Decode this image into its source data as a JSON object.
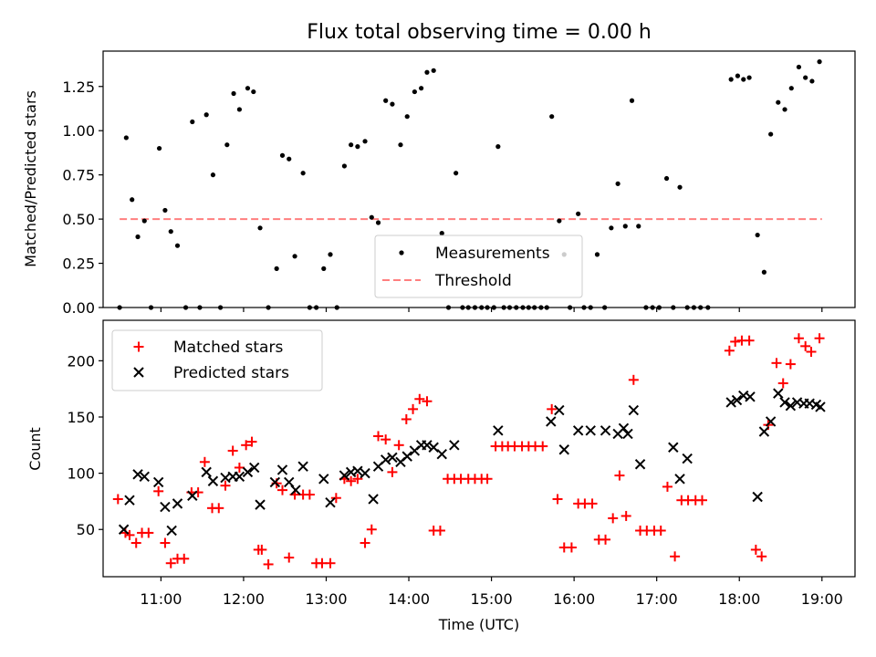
{
  "colors": {
    "measurements": "#000000",
    "threshold": "#ff7f7f",
    "matched": "#ff0000",
    "predicted": "#000000"
  },
  "chart_data": [
    {
      "type": "scatter",
      "title": "Flux total observing time = 0.00 h",
      "xlabel": "",
      "ylabel": "Matched/Predicted stars",
      "xlim": [
        10.3,
        19.4
      ],
      "ylim": [
        0,
        1.45
      ],
      "ytick_labels": [
        "0.00",
        "0.25",
        "0.50",
        "0.75",
        "1.00",
        "1.25"
      ],
      "ytick_values": [
        0,
        0.25,
        0.5,
        0.75,
        1.0,
        1.25
      ],
      "legend_position": "lower-center",
      "grid": false,
      "series": [
        {
          "name": "Measurements",
          "marker": "dot",
          "x": [
            10.5,
            10.58,
            10.65,
            10.72,
            10.8,
            10.88,
            10.98,
            11.05,
            11.12,
            11.2,
            11.3,
            11.38,
            11.47,
            11.55,
            11.63,
            11.72,
            11.8,
            11.88,
            11.95,
            12.05,
            12.12,
            12.2,
            12.3,
            12.4,
            12.47,
            12.55,
            12.62,
            12.72,
            12.8,
            12.88,
            12.97,
            13.05,
            13.13,
            13.22,
            13.3,
            13.38,
            13.47,
            13.55,
            13.63,
            13.72,
            13.8,
            13.9,
            13.98,
            14.07,
            14.15,
            14.22,
            14.3,
            14.4,
            14.48,
            14.57,
            14.65,
            14.72,
            14.8,
            14.88,
            14.95,
            15.03,
            15.08,
            15.15,
            15.22,
            15.3,
            15.38,
            15.45,
            15.52,
            15.6,
            15.67,
            15.73,
            15.82,
            15.88,
            15.95,
            16.05,
            16.12,
            16.2,
            16.28,
            16.37,
            16.45,
            16.53,
            16.62,
            16.7,
            16.78,
            16.87,
            16.95,
            17.03,
            17.12,
            17.2,
            17.28,
            17.37,
            17.45,
            17.53,
            17.62,
            17.9,
            17.98,
            18.05,
            18.12,
            18.22,
            18.3,
            18.38,
            18.47,
            18.55,
            18.63,
            18.72,
            18.8,
            18.88,
            18.97
          ],
          "y": [
            0,
            0.96,
            0.61,
            0.4,
            0.49,
            0,
            0.9,
            0.55,
            0.43,
            0.35,
            0,
            1.05,
            0,
            1.09,
            0.75,
            0,
            0.92,
            1.21,
            1.12,
            1.24,
            1.22,
            0.45,
            0,
            0.22,
            0.86,
            0.84,
            0.29,
            0.76,
            0,
            0,
            0.22,
            0.3,
            0,
            0.8,
            0.92,
            0.91,
            0.94,
            0.51,
            0.48,
            1.17,
            1.15,
            0.92,
            1.08,
            1.22,
            1.24,
            1.33,
            1.34,
            0.42,
            0,
            0.76,
            0,
            0,
            0,
            0,
            0,
            0,
            0.91,
            0,
            0,
            0,
            0,
            0,
            0,
            0,
            0,
            1.08,
            0.49,
            0.3,
            0,
            0.53,
            0,
            0,
            0.3,
            0,
            0.45,
            0.7,
            0.46,
            1.17,
            0.46,
            0,
            0,
            0,
            0.73,
            0,
            0.68,
            0,
            0,
            0,
            0,
            1.29,
            1.31,
            1.29,
            1.3,
            0.41,
            0.2,
            0.98,
            1.16,
            1.12,
            1.24,
            1.36,
            1.3,
            1.28,
            1.39
          ]
        },
        {
          "name": "Threshold",
          "marker": "dashed-line",
          "x": [
            10.5,
            19.0
          ],
          "y": [
            0.5,
            0.5
          ]
        }
      ]
    },
    {
      "type": "scatter",
      "title": "",
      "xlabel": "Time (UTC)",
      "ylabel": "Count",
      "xlim": [
        10.3,
        19.4
      ],
      "ylim": [
        8,
        236
      ],
      "xtick_labels": [
        "11:00",
        "12:00",
        "13:00",
        "14:00",
        "15:00",
        "16:00",
        "17:00",
        "18:00",
        "19:00"
      ],
      "xtick_values": [
        11,
        12,
        13,
        14,
        15,
        16,
        17,
        18,
        19
      ],
      "ytick_labels": [
        "50",
        "100",
        "150",
        "200"
      ],
      "ytick_values": [
        50,
        100,
        150,
        200
      ],
      "legend_position": "upper-left",
      "grid": false,
      "series": [
        {
          "name": "Matched stars",
          "marker": "plus",
          "x": [
            10.48,
            10.57,
            10.62,
            10.7,
            10.77,
            10.85,
            10.97,
            11.05,
            11.12,
            11.2,
            11.28,
            11.37,
            11.45,
            11.53,
            11.62,
            11.7,
            11.78,
            11.87,
            11.95,
            12.03,
            12.1,
            12.18,
            12.22,
            12.3,
            12.4,
            12.47,
            12.55,
            12.62,
            12.72,
            12.8,
            12.88,
            12.95,
            13.05,
            13.12,
            13.22,
            13.3,
            13.38,
            13.47,
            13.55,
            13.63,
            13.72,
            13.8,
            13.88,
            13.97,
            14.05,
            14.13,
            14.22,
            14.3,
            14.38,
            14.47,
            14.55,
            14.63,
            14.72,
            14.8,
            14.88,
            14.95,
            15.05,
            15.13,
            15.2,
            15.28,
            15.37,
            15.45,
            15.53,
            15.62,
            15.73,
            15.8,
            15.88,
            15.97,
            16.05,
            16.13,
            16.22,
            16.3,
            16.38,
            16.47,
            16.55,
            16.63,
            16.72,
            16.8,
            16.88,
            16.97,
            17.05,
            17.13,
            17.22,
            17.3,
            17.38,
            17.47,
            17.55,
            17.88,
            17.95,
            18.03,
            18.12,
            18.2,
            18.27,
            18.35,
            18.45,
            18.53,
            18.62,
            18.72,
            18.8,
            18.87,
            18.97
          ],
          "y": [
            77,
            47,
            45,
            38,
            47,
            47,
            84,
            38,
            20,
            24,
            24,
            83,
            83,
            110,
            69,
            69,
            89,
            120,
            105,
            125,
            128,
            32,
            32,
            19,
            91,
            85,
            25,
            81,
            81,
            81,
            20,
            20,
            20,
            78,
            95,
            93,
            95,
            38,
            50,
            133,
            130,
            101,
            125,
            148,
            157,
            166,
            164,
            49,
            49,
            95,
            95,
            95,
            95,
            95,
            95,
            95,
            124,
            124,
            124,
            124,
            124,
            124,
            124,
            124,
            157,
            77,
            34,
            34,
            73,
            73,
            73,
            41,
            41,
            60,
            98,
            62,
            183,
            49,
            49,
            49,
            49,
            88,
            26,
            76,
            76,
            76,
            76,
            209,
            217,
            218,
            218,
            32,
            26,
            143,
            198,
            180,
            197,
            220,
            213,
            208,
            220
          ]
        },
        {
          "name": "Predicted stars",
          "marker": "x",
          "x": [
            10.55,
            10.62,
            10.72,
            10.8,
            10.97,
            11.05,
            11.13,
            11.2,
            11.38,
            11.55,
            11.63,
            11.78,
            11.87,
            11.95,
            12.05,
            12.13,
            12.2,
            12.38,
            12.47,
            12.55,
            12.63,
            12.72,
            12.97,
            13.05,
            13.22,
            13.3,
            13.38,
            13.47,
            13.57,
            13.63,
            13.72,
            13.8,
            13.9,
            13.98,
            14.07,
            14.15,
            14.22,
            14.3,
            14.4,
            14.55,
            15.08,
            15.72,
            15.82,
            15.88,
            16.05,
            16.2,
            16.38,
            16.53,
            16.6,
            16.65,
            16.72,
            16.8,
            17.2,
            17.28,
            17.37,
            17.9,
            17.97,
            18.05,
            18.13,
            18.22,
            18.3,
            18.38,
            18.47,
            18.55,
            18.62,
            18.7,
            18.78,
            18.85,
            18.93,
            18.98
          ],
          "y": [
            50,
            76,
            99,
            97,
            92,
            70,
            49,
            73,
            80,
            101,
            93,
            96,
            97,
            97,
            101,
            105,
            72,
            92,
            103,
            92,
            85,
            106,
            95,
            74,
            98,
            101,
            102,
            100,
            77,
            106,
            112,
            114,
            110,
            115,
            120,
            125,
            125,
            123,
            117,
            125,
            138,
            146,
            156,
            121,
            138,
            138,
            138,
            135,
            140,
            135,
            156,
            108,
            123,
            95,
            113,
            163,
            165,
            169,
            168,
            79,
            137,
            146,
            171,
            163,
            160,
            163,
            162,
            162,
            161,
            159
          ]
        }
      ]
    }
  ]
}
